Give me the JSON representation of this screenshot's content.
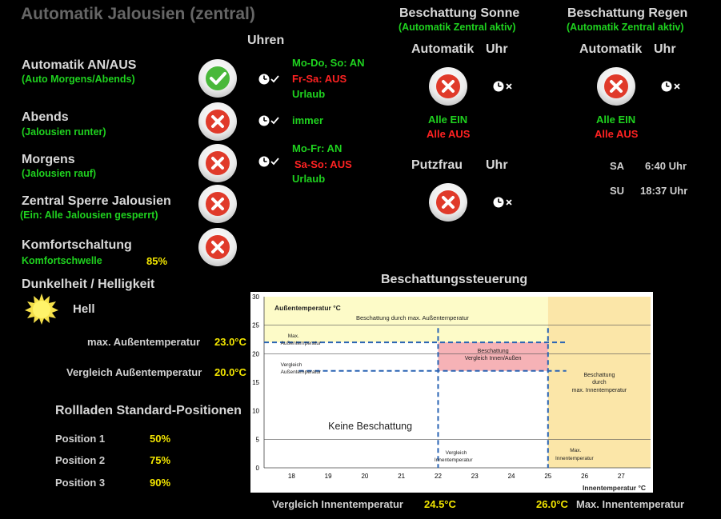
{
  "header": {
    "title": "Automatik Jalousien (zentral)"
  },
  "uhren_label": "Uhren",
  "left_items": [
    {
      "label": "Automatik AN/AUS",
      "sub": "(Auto Morgens/Abends)",
      "state": "on"
    },
    {
      "label": "Abends",
      "sub": "(Jalousien runter)",
      "state": "off"
    },
    {
      "label": "Morgens",
      "sub": "(Jalousien rauf)",
      "state": "off"
    },
    {
      "label": "Zentral Sperre Jalousien",
      "sub": "(Ein: Alle Jalousien gesperrt)",
      "state": "off"
    },
    {
      "label": "Komfortschaltung",
      "sub": "Komfortschwelle",
      "state": "off",
      "value": "85%"
    }
  ],
  "clocks": {
    "c1": {
      "l1": "Mo-Do, So: AN",
      "l2": "Fr-Sa: AUS",
      "l3": "Urlaub"
    },
    "c2": {
      "l1": "immer"
    },
    "c3": {
      "l1": "Mo-Fr: AN",
      "l2": "Sa-So: AUS",
      "l3": "Urlaub"
    }
  },
  "sonne": {
    "title": "Beschattung Sonne",
    "subtitle": "(Automatik Zentral aktiv)",
    "automatik_label": "Automatik",
    "uhr_label": "Uhr",
    "alle_ein": "Alle EIN",
    "alle_aus": "Alle AUS"
  },
  "putzfrau": {
    "label": "Putzfrau",
    "uhr_label": "Uhr"
  },
  "regen": {
    "title": "Beschattung Regen",
    "subtitle": "(Automatik Zentral aktiv)",
    "automatik_label": "Automatik",
    "uhr_label": "Uhr",
    "alle_ein": "Alle EIN",
    "alle_aus": "Alle AUS",
    "sa_label": "SA",
    "sa_time": "6:40 Uhr",
    "su_label": "SU",
    "su_time": "18:37 Uhr"
  },
  "dunkel": {
    "title": "Dunkelheit / Helligkeit",
    "state": "Hell"
  },
  "temps": {
    "max_label": "max. Außentemperatur",
    "max_value": "23.0°C",
    "vgl_label": "Vergleich Außentemperatur",
    "vgl_value": "20.0°C"
  },
  "rollladen": {
    "title": "Rollladen Standard-Positionen",
    "positions": [
      {
        "label": "Position 1",
        "value": "50%"
      },
      {
        "label": "Position 2",
        "value": "75%"
      },
      {
        "label": "Position 3",
        "value": "90%"
      }
    ]
  },
  "bottom": {
    "vgl_inn_label": "Vergleich Innentemperatur",
    "vgl_inn_value": "24.5°C",
    "max_inn_value": "26.0°C",
    "max_inn_label": "Max. Innentemperatur"
  },
  "chart_title": "Beschattungssteuerung",
  "chart_data": {
    "type": "diagram",
    "title": "Beschattungssteuerung",
    "xlabel": "Innentemperatur °C",
    "ylabel": "Außentemperatur °C",
    "xlim": [
      17.25,
      27.8
    ],
    "ylim": [
      0,
      30
    ],
    "x_ticks": [
      18,
      19,
      20,
      21,
      22,
      23,
      24,
      25,
      26,
      27
    ],
    "y_ticks": [
      0,
      5,
      10,
      15,
      20,
      25,
      30
    ],
    "vergleich_innen": 22,
    "max_innen": 25,
    "vergleich_aussen": 17,
    "max_aussen": 22,
    "regions": [
      {
        "name": "Beschattung durch max. Außentemperatur",
        "x": [
          17.25,
          25
        ],
        "y": [
          22,
          30
        ]
      },
      {
        "name": "Beschattung durch max. Innentemperatur",
        "x": [
          25,
          27.8
        ],
        "y": [
          0,
          30
        ]
      },
      {
        "name": "Beschattung Vergleich Innen/Außen",
        "x": [
          22,
          25
        ],
        "y": [
          17,
          22
        ]
      }
    ],
    "labels": {
      "ylabel": "Außentemperatur °C",
      "top": "Beschattung durch max. Außentemperatur",
      "max_aussen_1": "Max.",
      "max_aussen_2": "Außentemperatur",
      "vgl_aussen_1": "Vergleich",
      "vgl_aussen_2": "Außentemperatur",
      "pink_1": "Beschattung",
      "pink_2": "Vergleich Innen/Außen",
      "right_1": "Beschattung",
      "right_2": "durch",
      "right_3": "max. Innentemperatur",
      "keine": "Keine Beschattung",
      "vgl_innen_1": "Vergleich",
      "vgl_innen_2": "Innentemperatur",
      "max_innen_1": "Max.",
      "max_innen_2": "Innentemperatur",
      "xlabel": "Innentemperatur °C"
    }
  }
}
